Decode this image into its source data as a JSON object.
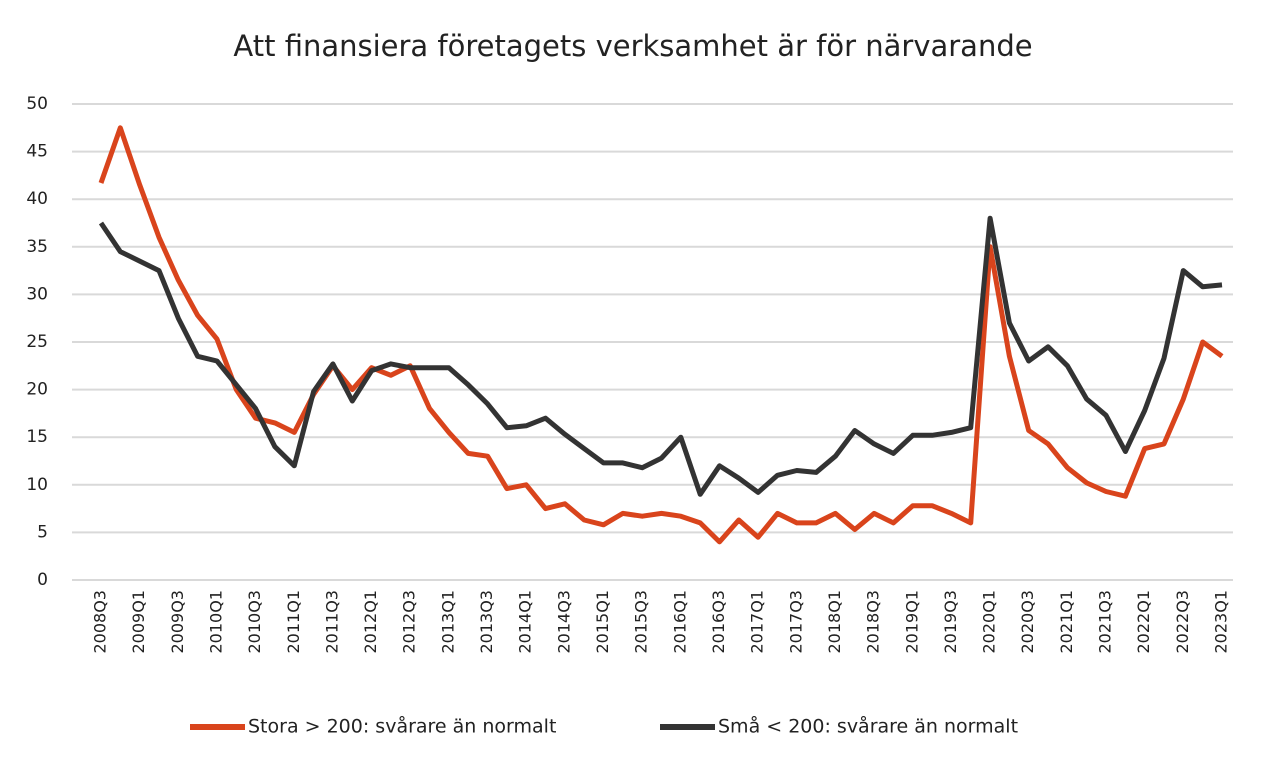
{
  "chart_data": {
    "type": "line",
    "title": "Att finansiera företagets verksamhet är för närvarande",
    "categories": [
      "2008Q3",
      null,
      "2009Q1",
      null,
      "2009Q3",
      null,
      "2010Q1",
      null,
      "2010Q3",
      null,
      "2011Q1",
      null,
      "2011Q3",
      null,
      "2012Q1",
      null,
      "2012Q3",
      null,
      "2013Q1",
      null,
      "2013Q3",
      null,
      "2014Q1",
      null,
      "2014Q3",
      null,
      "2015Q1",
      null,
      "2015Q3",
      null,
      "2016Q1",
      null,
      "2016Q3",
      null,
      "2017Q1",
      null,
      "2017Q3",
      null,
      "2018Q1",
      null,
      "2018Q3",
      null,
      "2019Q1",
      null,
      "2019Q3",
      null,
      "2020Q1",
      null,
      "2020Q3",
      null,
      "2021Q1",
      null,
      "2021Q3",
      null,
      "2022Q1",
      null,
      "2022Q3",
      null,
      "2023Q1"
    ],
    "series": [
      {
        "name": "Stora > 200: svårare än normalt",
        "color": "#d9441c",
        "values": [
          41.7,
          47.5,
          41.5,
          36,
          31.5,
          27.8,
          25.3,
          20,
          17,
          16.5,
          15.5,
          19.5,
          22.5,
          20,
          22.3,
          21.5,
          22.5,
          18,
          15.5,
          13.3,
          13,
          9.6,
          10,
          7.5,
          8,
          6.3,
          5.8,
          7,
          6.7,
          7,
          6.7,
          6,
          4,
          6.3,
          4.5,
          7,
          6,
          6,
          7,
          5.3,
          7,
          6,
          7.8,
          7.8,
          7,
          6,
          35,
          23.5,
          15.7,
          14.3,
          11.8,
          10.2,
          9.3,
          8.8,
          13.8,
          14.3,
          19,
          25,
          23.5
        ]
      },
      {
        "name": "Små < 200: svårare än normalt",
        "color": "#333333",
        "values": [
          37.5,
          34.5,
          33.5,
          32.5,
          27.5,
          23.5,
          23,
          20.5,
          18,
          14,
          12,
          19.8,
          22.7,
          18.8,
          22,
          22.7,
          22.3,
          22.3,
          22.3,
          20.5,
          18.5,
          16,
          16.2,
          17,
          15.3,
          13.8,
          12.3,
          12.3,
          11.8,
          12.8,
          15,
          9,
          12,
          10.7,
          9.2,
          11,
          11.5,
          11.3,
          13,
          15.7,
          14.3,
          13.3,
          15.2,
          15.2,
          15.5,
          16,
          38,
          27,
          23,
          24.5,
          22.5,
          19,
          17.3,
          13.5,
          17.8,
          23.3,
          32.5,
          30.8,
          31
        ]
      }
    ],
    "ylim": [
      0,
      50
    ],
    "yticks": [
      0,
      5,
      10,
      15,
      20,
      25,
      30,
      35,
      40,
      45,
      50
    ],
    "grid": true
  }
}
